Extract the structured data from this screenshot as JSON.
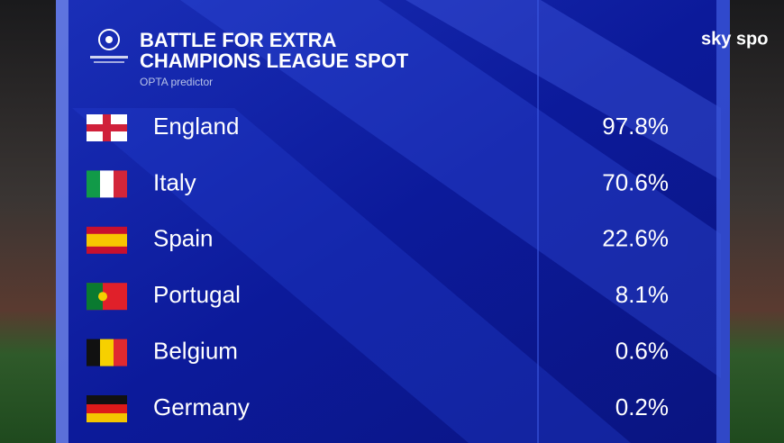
{
  "header": {
    "title_lines": [
      "BATTLE FOR EXTRA",
      "CHAMPIONS LEAGUE SPOT"
    ],
    "subtitle": "OPTA predictor",
    "broadcaster": "sky spo"
  },
  "table": {
    "rows": [
      [
        "England",
        "97.8%"
      ],
      [
        "Italy",
        "70.6%"
      ],
      [
        "Spain",
        "22.6%"
      ],
      [
        "Portugal",
        "8.1%"
      ],
      [
        "Belgium",
        "0.6%"
      ],
      [
        "Germany",
        "0.2%"
      ]
    ]
  }
}
